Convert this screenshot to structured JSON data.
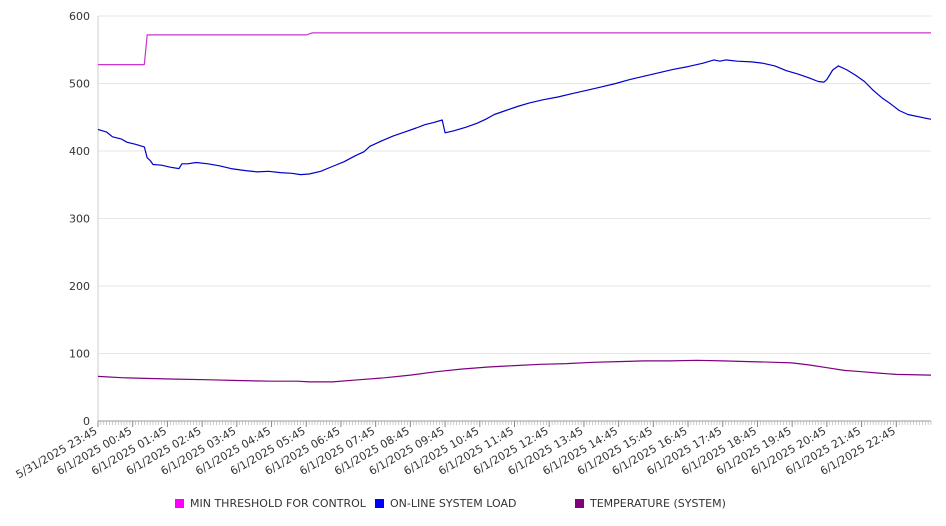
{
  "chart_data": {
    "type": "line",
    "title": "",
    "xlabel": "",
    "ylabel": "",
    "ylim": [
      0,
      600
    ],
    "yticks": [
      0,
      100,
      200,
      300,
      400,
      500,
      600
    ],
    "grid": true,
    "legend_position": "bottom",
    "x_start": "5/31/2025 23:45",
    "x_end": "6/1/2025 23:45",
    "x_step_minutes": 5,
    "x_tick_labels": [
      "5/31/2025 23:45",
      "6/1/2025 00:45",
      "6/1/2025 01:45",
      "6/1/2025 02:45",
      "6/1/2025 03:45",
      "6/1/2025 04:45",
      "6/1/2025 05:45",
      "6/1/2025 06:45",
      "6/1/2025 07:45",
      "6/1/2025 08:45",
      "6/1/2025 09:45",
      "6/1/2025 10:45",
      "6/1/2025 11:45",
      "6/1/2025 12:45",
      "6/1/2025 13:45",
      "6/1/2025 14:45",
      "6/1/2025 15:45",
      "6/1/2025 16:45",
      "6/1/2025 17:45",
      "6/1/2025 18:45",
      "6/1/2025 19:45",
      "6/1/2025 20:45",
      "6/1/2025 21:45",
      "6/1/2025 22:45"
    ],
    "series": [
      {
        "name": "MIN THRESHOLD FOR CONTROL",
        "color": "#cc33cc",
        "points": [
          [
            "5/31/2025 23:45",
            528
          ],
          [
            "6/1/2025 01:00",
            528
          ],
          [
            "6/1/2025 01:05",
            528
          ],
          [
            "6/1/2025 01:10",
            572
          ],
          [
            "6/1/2025 03:00",
            572
          ],
          [
            "6/1/2025 05:45",
            572
          ],
          [
            "6/1/2025 05:55",
            575
          ],
          [
            "6/1/2025 12:00",
            575
          ],
          [
            "6/1/2025 23:45",
            575
          ]
        ]
      },
      {
        "name": "ON-LINE SYSTEM LOAD",
        "color": "#0000cc",
        "points": [
          [
            "5/31/2025 23:45",
            432
          ],
          [
            "6/1/2025 00:00",
            428
          ],
          [
            "6/1/2025 00:10",
            421
          ],
          [
            "6/1/2025 00:25",
            418
          ],
          [
            "6/1/2025 00:35",
            413
          ],
          [
            "6/1/2025 00:50",
            410
          ],
          [
            "6/1/2025 01:05",
            406
          ],
          [
            "6/1/2025 01:10",
            390
          ],
          [
            "6/1/2025 01:15",
            386
          ],
          [
            "6/1/2025 01:20",
            380
          ],
          [
            "6/1/2025 01:35",
            379
          ],
          [
            "6/1/2025 01:50",
            376
          ],
          [
            "6/1/2025 02:05",
            374
          ],
          [
            "6/1/2025 02:10",
            381
          ],
          [
            "6/1/2025 02:20",
            381
          ],
          [
            "6/1/2025 02:35",
            383
          ],
          [
            "6/1/2025 02:55",
            381
          ],
          [
            "6/1/2025 03:15",
            378
          ],
          [
            "6/1/2025 03:35",
            374
          ],
          [
            "6/1/2025 04:00",
            371
          ],
          [
            "6/1/2025 04:20",
            369
          ],
          [
            "6/1/2025 04:40",
            370
          ],
          [
            "6/1/2025 05:00",
            368
          ],
          [
            "6/1/2025 05:20",
            367
          ],
          [
            "6/1/2025 05:35",
            365
          ],
          [
            "6/1/2025 05:50",
            366
          ],
          [
            "6/1/2025 06:10",
            370
          ],
          [
            "6/1/2025 06:30",
            377
          ],
          [
            "6/1/2025 06:50",
            384
          ],
          [
            "6/1/2025 07:10",
            393
          ],
          [
            "6/1/2025 07:25",
            399
          ],
          [
            "6/1/2025 07:35",
            407
          ],
          [
            "6/1/2025 07:55",
            415
          ],
          [
            "6/1/2025 08:15",
            422
          ],
          [
            "6/1/2025 08:35",
            428
          ],
          [
            "6/1/2025 08:55",
            434
          ],
          [
            "6/1/2025 09:10",
            439
          ],
          [
            "6/1/2025 09:25",
            442
          ],
          [
            "6/1/2025 09:40",
            446
          ],
          [
            "6/1/2025 09:45",
            427
          ],
          [
            "6/1/2025 10:00",
            430
          ],
          [
            "6/1/2025 10:20",
            435
          ],
          [
            "6/1/2025 10:40",
            441
          ],
          [
            "6/1/2025 10:55",
            447
          ],
          [
            "6/1/2025 11:10",
            454
          ],
          [
            "6/1/2025 11:30",
            460
          ],
          [
            "6/1/2025 11:50",
            466
          ],
          [
            "6/1/2025 12:10",
            471
          ],
          [
            "6/1/2025 12:35",
            476
          ],
          [
            "6/1/2025 13:00",
            480
          ],
          [
            "6/1/2025 13:25",
            485
          ],
          [
            "6/1/2025 13:50",
            490
          ],
          [
            "6/1/2025 14:15",
            495
          ],
          [
            "6/1/2025 14:40",
            500
          ],
          [
            "6/1/2025 15:05",
            506
          ],
          [
            "6/1/2025 15:30",
            511
          ],
          [
            "6/1/2025 15:55",
            516
          ],
          [
            "6/1/2025 16:20",
            521
          ],
          [
            "6/1/2025 16:45",
            525
          ],
          [
            "6/1/2025 17:10",
            530
          ],
          [
            "6/1/2025 17:30",
            535
          ],
          [
            "6/1/2025 17:40",
            533
          ],
          [
            "6/1/2025 17:50",
            535
          ],
          [
            "6/1/2025 18:10",
            533
          ],
          [
            "6/1/2025 18:35",
            532
          ],
          [
            "6/1/2025 18:55",
            530
          ],
          [
            "6/1/2025 19:15",
            526
          ],
          [
            "6/1/2025 19:35",
            519
          ],
          [
            "6/1/2025 19:55",
            514
          ],
          [
            "6/1/2025 20:15",
            508
          ],
          [
            "6/1/2025 20:30",
            503
          ],
          [
            "6/1/2025 20:40",
            502
          ],
          [
            "6/1/2025 20:45",
            506
          ],
          [
            "6/1/2025 20:55",
            520
          ],
          [
            "6/1/2025 21:05",
            526
          ],
          [
            "6/1/2025 21:20",
            520
          ],
          [
            "6/1/2025 21:35",
            512
          ],
          [
            "6/1/2025 21:50",
            503
          ],
          [
            "6/1/2025 22:05",
            490
          ],
          [
            "6/1/2025 22:20",
            479
          ],
          [
            "6/1/2025 22:35",
            470
          ],
          [
            "6/1/2025 22:50",
            460
          ],
          [
            "6/1/2025 23:05",
            454
          ],
          [
            "6/1/2025 23:45",
            447
          ]
        ]
      },
      {
        "name": "TEMPERATURE (SYSTEM)",
        "color": "#800080",
        "points": [
          [
            "5/31/2025 23:45",
            66
          ],
          [
            "6/1/2025 00:30",
            64
          ],
          [
            "6/1/2025 01:15",
            63
          ],
          [
            "6/1/2025 02:00",
            62
          ],
          [
            "6/1/2025 03:00",
            61
          ],
          [
            "6/1/2025 03:45",
            60
          ],
          [
            "6/1/2025 04:45",
            59
          ],
          [
            "6/1/2025 05:30",
            59
          ],
          [
            "6/1/2025 05:50",
            58
          ],
          [
            "6/1/2025 06:30",
            58
          ],
          [
            "6/1/2025 07:15",
            61
          ],
          [
            "6/1/2025 08:00",
            64
          ],
          [
            "6/1/2025 08:45",
            68
          ],
          [
            "6/1/2025 09:30",
            73
          ],
          [
            "6/1/2025 10:15",
            77
          ],
          [
            "6/1/2025 11:00",
            80
          ],
          [
            "6/1/2025 11:45",
            82
          ],
          [
            "6/1/2025 12:30",
            84
          ],
          [
            "6/1/2025 13:15",
            85
          ],
          [
            "6/1/2025 14:00",
            87
          ],
          [
            "6/1/2025 14:45",
            88
          ],
          [
            "6/1/2025 15:30",
            89
          ],
          [
            "6/1/2025 16:15",
            89
          ],
          [
            "6/1/2025 17:00",
            90
          ],
          [
            "6/1/2025 17:45",
            89
          ],
          [
            "6/1/2025 18:30",
            88
          ],
          [
            "6/1/2025 19:15",
            87
          ],
          [
            "6/1/2025 19:45",
            86
          ],
          [
            "6/1/2025 20:15",
            83
          ],
          [
            "6/1/2025 20:45",
            79
          ],
          [
            "6/1/2025 21:15",
            75
          ],
          [
            "6/1/2025 21:45",
            73
          ],
          [
            "6/1/2025 22:15",
            71
          ],
          [
            "6/1/2025 22:45",
            69
          ],
          [
            "6/1/2025 23:45",
            68
          ]
        ]
      }
    ]
  }
}
